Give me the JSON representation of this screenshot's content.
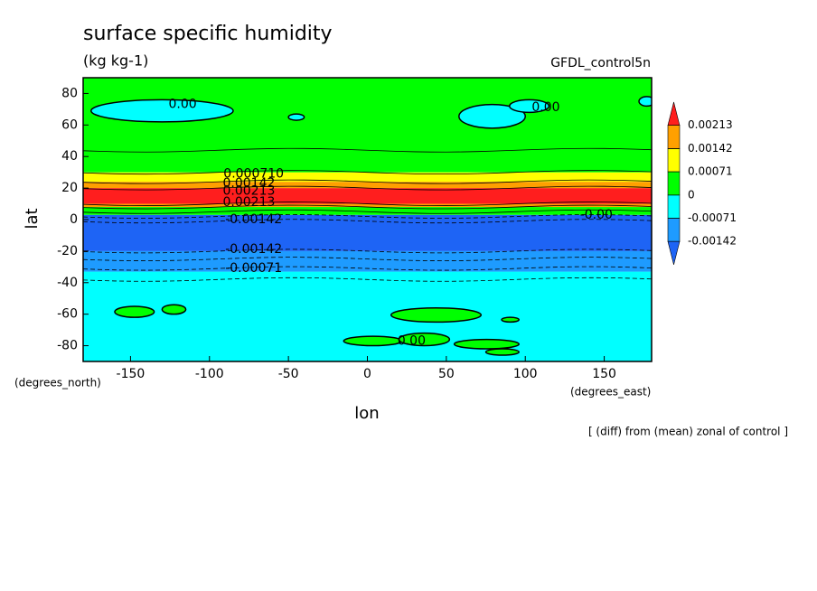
{
  "chart_data": {
    "type": "contour",
    "title": "surface specific humidity",
    "units": "(kg kg-1)",
    "model": "GFDL_control5n",
    "x_label": "lon",
    "y_label": "lat",
    "x_units": "(degrees_east)",
    "y_units": "(degrees_north)",
    "note": "[ (diff) from (mean) zonal of control ]",
    "xlim": [
      -180,
      180
    ],
    "ylim": [
      -90,
      90
    ],
    "xticks": [
      -150,
      -100,
      -50,
      0,
      50,
      100,
      150
    ],
    "yticks": [
      -80,
      -60,
      -40,
      -20,
      0,
      20,
      40,
      60,
      80
    ],
    "colorbar": {
      "levels": [
        -0.00142,
        -0.00071,
        0,
        0.00071,
        0.00142,
        0.00213
      ],
      "colors": [
        "#1e64f5",
        "#1e9bff",
        "#00ffff",
        "#00ff00",
        "#ffff00",
        "#ffa000",
        "#ff1e1e"
      ]
    },
    "regions": [
      {
        "lat": [
          -90,
          -33
        ],
        "color": "#00ffff"
      },
      {
        "lat": [
          -33,
          -20
        ],
        "color": "#1e9bff"
      },
      {
        "lat": [
          -20,
          3
        ],
        "color": "#1e64f5"
      },
      {
        "lat": [
          3,
          8
        ],
        "color": "#00ff00"
      },
      {
        "lat": [
          8,
          10
        ],
        "color": "#ffa000"
      },
      {
        "lat": [
          10,
          20
        ],
        "color": "#ff1e1e"
      },
      {
        "lat": [
          20,
          24
        ],
        "color": "#ffa000"
      },
      {
        "lat": [
          24,
          30
        ],
        "color": "#ffff00"
      },
      {
        "lat": [
          30,
          90
        ],
        "color": "#00ff00"
      },
      {
        "lon": [
          -175,
          -85
        ],
        "lat": [
          62,
          76
        ],
        "color": "#00ffff"
      },
      {
        "lon": [
          -50,
          -40
        ],
        "lat": [
          63,
          67
        ],
        "color": "#00ffff"
      },
      {
        "lon": [
          58,
          100
        ],
        "lat": [
          58,
          73
        ],
        "color": "#00ffff"
      },
      {
        "lon": [
          90,
          115
        ],
        "lat": [
          68,
          76
        ],
        "color": "#00ffff"
      },
      {
        "lon": [
          172,
          182
        ],
        "lat": [
          72,
          78
        ],
        "color": "#00ffff"
      },
      {
        "lon": [
          -160,
          -135
        ],
        "lat": [
          -62,
          -55
        ],
        "color": "#00ff00"
      },
      {
        "lon": [
          -130,
          -115
        ],
        "lat": [
          -60,
          -54
        ],
        "color": "#00ff00"
      },
      {
        "lon": [
          15,
          72
        ],
        "lat": [
          -65,
          -56
        ],
        "color": "#00ff00"
      },
      {
        "lon": [
          85,
          96
        ],
        "lat": [
          -65,
          -62
        ],
        "color": "#00ff00"
      },
      {
        "lon": [
          -15,
          22
        ],
        "lat": [
          -80,
          -74
        ],
        "color": "#00ff00"
      },
      {
        "lon": [
          20,
          52
        ],
        "lat": [
          -80,
          -72
        ],
        "color": "#00ff00"
      },
      {
        "lon": [
          55,
          96
        ],
        "lat": [
          -82,
          -76
        ],
        "color": "#00ff00"
      },
      {
        "lon": [
          75,
          96
        ],
        "lat": [
          -86,
          -82
        ],
        "color": "#00ff00"
      }
    ],
    "contour_lines": [
      {
        "lat": 44,
        "dashed": false
      },
      {
        "lat": 30,
        "dashed": false
      },
      {
        "lat": 24,
        "dashed": false
      },
      {
        "lat": 20,
        "dashed": false
      },
      {
        "lat": 10,
        "dashed": false
      },
      {
        "lat": 8,
        "dashed": false
      },
      {
        "lat": 5,
        "dashed": false
      },
      {
        "lat": 2,
        "dashed": true
      },
      {
        "lat": -1,
        "dashed": true
      },
      {
        "lat": -20,
        "dashed": true
      },
      {
        "lat": -25,
        "dashed": true
      },
      {
        "lat": -31,
        "dashed": true
      },
      {
        "lat": -38,
        "dashed": true
      }
    ],
    "contour_labels": [
      {
        "text": "0.00",
        "lon": -117,
        "lat": 73
      },
      {
        "text": "0.00",
        "lon": 113,
        "lat": 71
      },
      {
        "text": "0.00",
        "lon": 28,
        "lat": -77
      },
      {
        "text": "0.000710",
        "lon": -72,
        "lat": 29
      },
      {
        "text": "0.00142",
        "lon": -75,
        "lat": 23
      },
      {
        "text": "0.00213",
        "lon": -75,
        "lat": 18
      },
      {
        "text": "0.00213",
        "lon": -75,
        "lat": 11
      },
      {
        "text": "-0.00142",
        "lon": -72,
        "lat": 0
      },
      {
        "text": "-0.00142",
        "lon": -72,
        "lat": -19
      },
      {
        "text": "-0.00071",
        "lon": -72,
        "lat": -31
      },
      {
        "text": "-0.00",
        "lon": 145,
        "lat": 3
      }
    ]
  }
}
